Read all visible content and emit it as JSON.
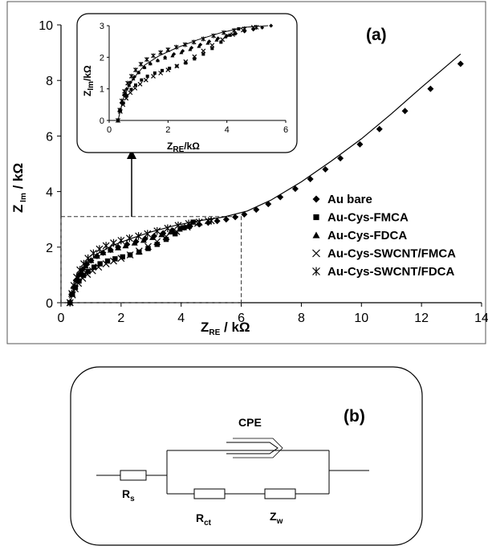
{
  "chart_data": [
    {
      "type": "scatter",
      "panel_label": "(a)",
      "xlabel": "Z",
      "xlabel_sub": "RE",
      "xlabel_unit": " / kΩ",
      "ylabel": "Z",
      "ylabel_sub": " Im",
      "ylabel_unit": " / kΩ",
      "xlim": [
        0,
        14
      ],
      "ylim": [
        0,
        10
      ],
      "xticks": [
        0,
        2,
        4,
        6,
        8,
        10,
        12,
        14
      ],
      "yticks": [
        0,
        2,
        4,
        6,
        8,
        10
      ],
      "legend_position": "right",
      "series": [
        {
          "name": "Au bare",
          "marker": "diamond",
          "x": [
            0.3,
            0.35,
            0.42,
            0.5,
            0.6,
            0.72,
            0.86,
            1.0,
            1.2,
            1.4,
            1.65,
            1.9,
            2.2,
            2.5,
            2.8,
            3.1,
            3.4,
            3.7,
            4.0,
            4.3,
            4.6,
            4.9,
            5.2,
            5.5,
            5.8,
            6.1,
            6.5,
            6.9,
            7.3,
            7.8,
            8.3,
            8.8,
            9.3,
            9.95,
            10.6,
            11.45,
            12.3,
            13.3
          ],
          "y": [
            0.0,
            0.3,
            0.55,
            0.8,
            1.0,
            1.2,
            1.38,
            1.52,
            1.68,
            1.8,
            1.9,
            2.0,
            2.1,
            2.2,
            2.3,
            2.4,
            2.5,
            2.6,
            2.68,
            2.75,
            2.82,
            2.88,
            2.94,
            3.0,
            3.08,
            3.18,
            3.35,
            3.55,
            3.8,
            4.1,
            4.45,
            4.8,
            5.2,
            5.7,
            6.25,
            6.9,
            7.7,
            8.6
          ]
        },
        {
          "name": "Au-Cys-FMCA",
          "marker": "square",
          "x": [
            0.3,
            0.38,
            0.48,
            0.6,
            0.75,
            0.9,
            1.1,
            1.3,
            1.55,
            1.8,
            2.05,
            2.3,
            2.6,
            2.9,
            3.2,
            3.5,
            3.8,
            4.1,
            4.4
          ],
          "y": [
            0.0,
            0.3,
            0.55,
            0.78,
            0.98,
            1.12,
            1.28,
            1.4,
            1.5,
            1.58,
            1.65,
            1.72,
            1.82,
            1.95,
            2.1,
            2.28,
            2.48,
            2.7,
            2.9
          ]
        },
        {
          "name": "Au-Cys-FDCA",
          "marker": "triangle",
          "x": [
            0.3,
            0.37,
            0.45,
            0.55,
            0.68,
            0.82,
            1.0,
            1.2,
            1.4,
            1.65,
            1.9,
            2.15,
            2.45,
            2.75,
            3.05,
            3.35,
            3.65,
            3.95,
            4.25
          ],
          "y": [
            0.0,
            0.32,
            0.6,
            0.88,
            1.12,
            1.32,
            1.52,
            1.68,
            1.8,
            1.9,
            1.98,
            2.05,
            2.15,
            2.25,
            2.35,
            2.45,
            2.55,
            2.65,
            2.75
          ]
        },
        {
          "name": "Au-Cys-SWCNT/FMCA",
          "marker": "x",
          "x": [
            0.3,
            0.38,
            0.47,
            0.58,
            0.72,
            0.88,
            1.05,
            1.25,
            1.5,
            1.75,
            2.0,
            2.3,
            2.6,
            2.9,
            3.2,
            3.5,
            3.85,
            4.2,
            4.55,
            4.9
          ],
          "y": [
            0.0,
            0.28,
            0.5,
            0.7,
            0.88,
            1.02,
            1.15,
            1.28,
            1.4,
            1.5,
            1.6,
            1.72,
            1.86,
            2.02,
            2.2,
            2.38,
            2.56,
            2.72,
            2.86,
            2.95
          ]
        },
        {
          "name": "Au-Cys-SWCNT/FDCA",
          "marker": "asterisk",
          "x": [
            0.3,
            0.36,
            0.43,
            0.52,
            0.63,
            0.76,
            0.9,
            1.08,
            1.28,
            1.5,
            1.75,
            2.0,
            2.28,
            2.58,
            2.88,
            3.2,
            3.55,
            3.9,
            4.25,
            4.6,
            5.0
          ],
          "y": [
            0.0,
            0.33,
            0.62,
            0.92,
            1.18,
            1.4,
            1.6,
            1.78,
            1.93,
            2.05,
            2.15,
            2.24,
            2.32,
            2.4,
            2.48,
            2.58,
            2.68,
            2.78,
            2.85,
            2.9,
            2.95
          ]
        }
      ],
      "fit_line": {
        "x": [
          0.3,
          0.5,
          0.8,
          1.2,
          1.7,
          2.3,
          3.0,
          3.8,
          4.6,
          5.4,
          6.2,
          7.0,
          8.0,
          9.0,
          10.0,
          11.0,
          12.0,
          13.3
        ],
        "y": [
          0.0,
          0.75,
          1.3,
          1.75,
          2.05,
          2.3,
          2.55,
          2.78,
          2.95,
          3.08,
          3.3,
          3.7,
          4.35,
          5.1,
          5.9,
          6.8,
          7.75,
          8.95
        ]
      },
      "zoom_region": {
        "x": [
          0,
          6
        ],
        "y": [
          0,
          3.1
        ]
      }
    },
    {
      "type": "scatter",
      "role": "inset",
      "xlabel": "Z",
      "xlabel_sub": "RE",
      "xlabel_unit": "/kΩ",
      "ylabel": "Z",
      "ylabel_sub": "Im",
      "ylabel_unit": "/kΩ",
      "xlim": [
        0,
        6
      ],
      "ylim": [
        0,
        3
      ],
      "xticks": [
        0,
        2,
        4,
        6
      ],
      "yticks": [
        0,
        1,
        2,
        3
      ]
    }
  ],
  "circuit": {
    "panel_label": "(b)",
    "cpe": "CPE",
    "rs": "R",
    "rs_sub": "s",
    "rct": "R",
    "rct_sub": "ct",
    "zw": "Z",
    "zw_sub": "w"
  }
}
